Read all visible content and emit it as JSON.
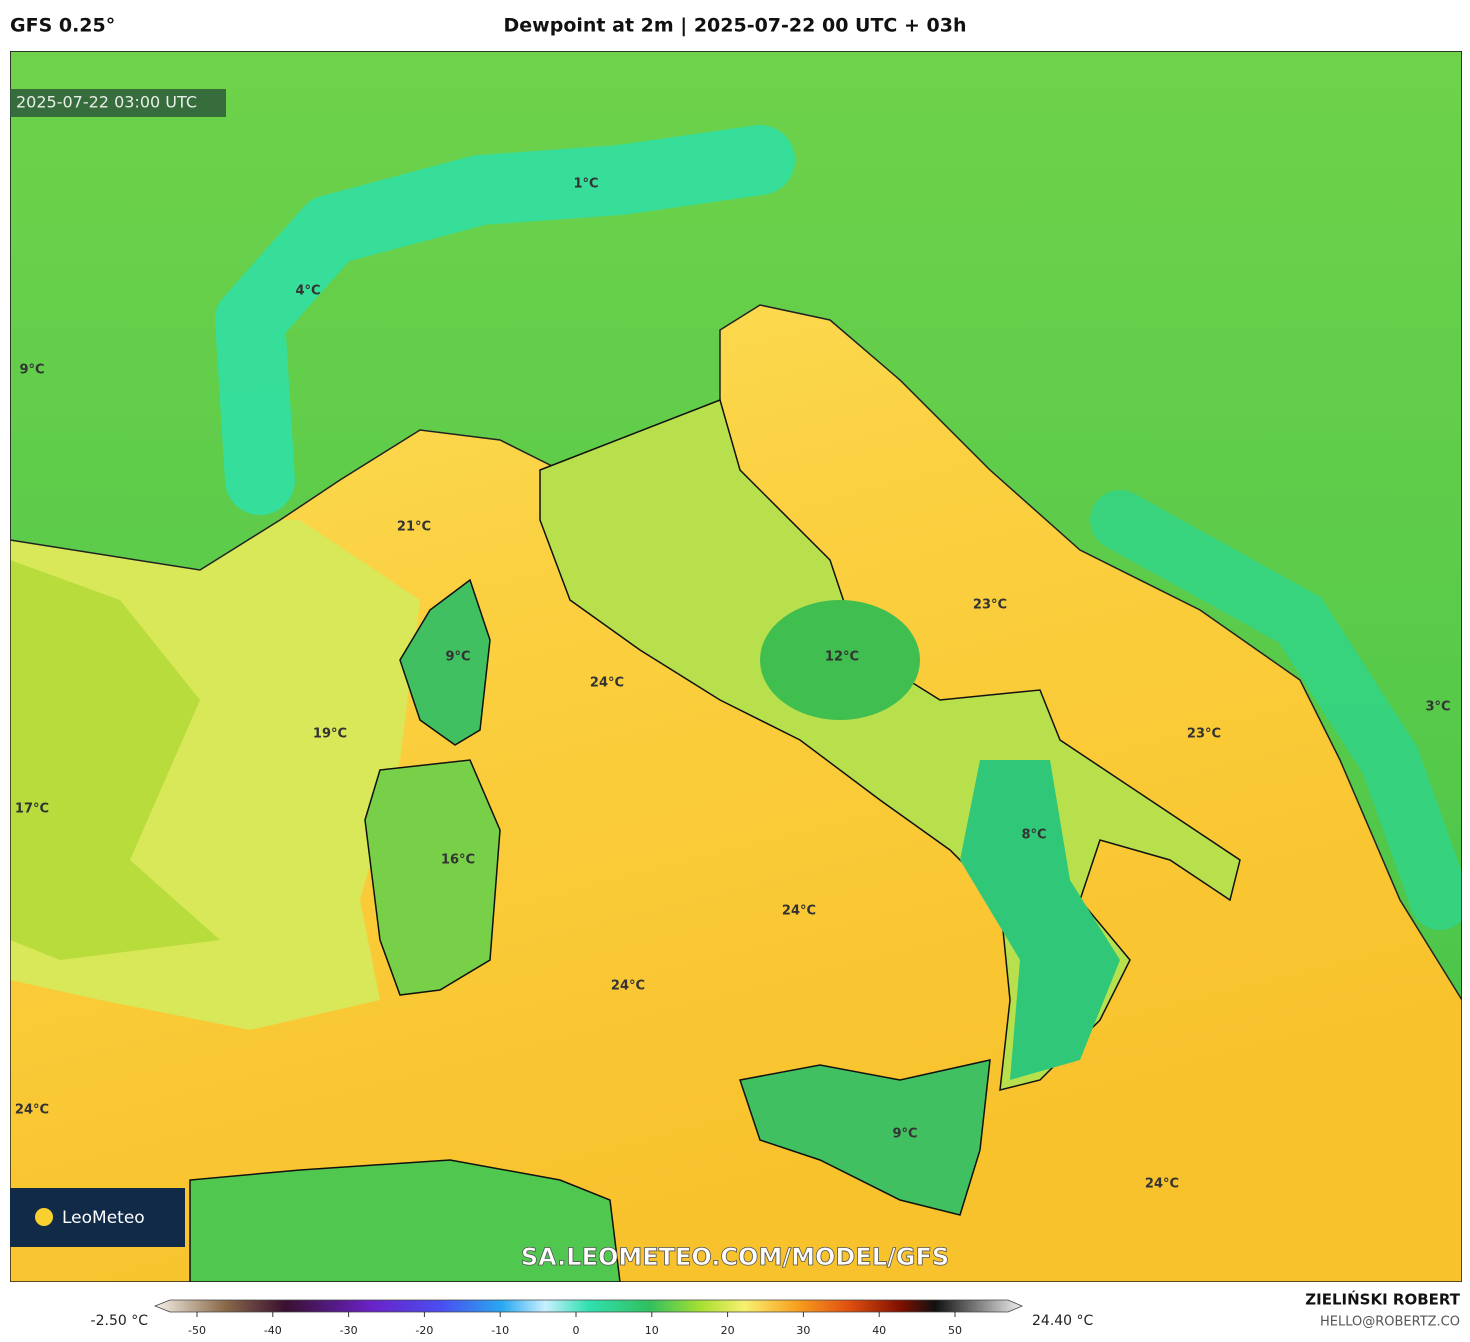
{
  "header": {
    "model": "GFS 0.25°",
    "title": "Dewpoint at 2m | 2025-07-22 00 UTC + 03h"
  },
  "map": {
    "timestamp": "2025-07-22 03:00 UTC",
    "labels": [
      "1°C",
      "4°C",
      "9°C",
      "21°C",
      "9°C",
      "24°C",
      "12°C",
      "23°C",
      "23°C",
      "3°C",
      "19°C",
      "17°C",
      "16°C",
      "8°C",
      "24°C",
      "24°C",
      "24°C",
      "9°C",
      "24°C"
    ],
    "logo": "LeoMeteo",
    "watermark": "SA.LEOMETEO.COM/MODEL/GFS"
  },
  "colorbar": {
    "min_label": "-2.50 °C",
    "max_label": "24.40 °C",
    "xlim": [
      -50,
      50
    ],
    "ticks": [
      -50,
      -40,
      -30,
      -20,
      -10,
      0,
      10,
      20,
      30,
      40,
      50
    ]
  },
  "footer": {
    "author": "ZIELIŃSKI ROBERT",
    "email": "HELLO@ROBERTZ.CO"
  }
}
